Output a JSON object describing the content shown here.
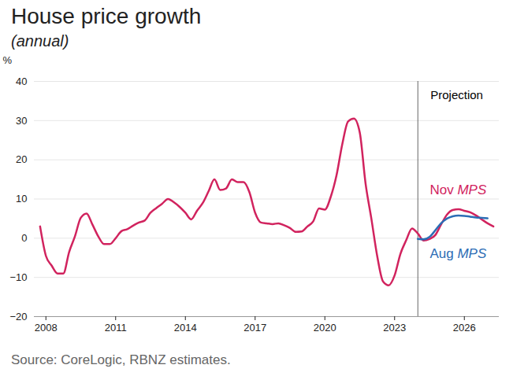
{
  "chart_data": {
    "type": "line",
    "title": "House price growth",
    "subtitle": "(annual)",
    "caption": "Source: CoreLogic, RBNZ estimates.",
    "y_label": "%",
    "projection": {
      "label": "Projection",
      "x": 2024.0
    },
    "x": [
      2007.75,
      2008.0,
      2008.25,
      2008.5,
      2008.75,
      2009.0,
      2009.25,
      2009.5,
      2009.75,
      2010.0,
      2010.25,
      2010.5,
      2010.75,
      2011.0,
      2011.25,
      2011.5,
      2011.75,
      2012.0,
      2012.25,
      2012.5,
      2012.75,
      2013.0,
      2013.25,
      2013.5,
      2013.75,
      2014.0,
      2014.25,
      2014.5,
      2014.75,
      2015.0,
      2015.25,
      2015.5,
      2015.75,
      2016.0,
      2016.25,
      2016.5,
      2016.75,
      2017.0,
      2017.25,
      2017.5,
      2017.75,
      2018.0,
      2018.25,
      2018.5,
      2018.75,
      2019.0,
      2019.25,
      2019.5,
      2019.75,
      2020.0,
      2020.25,
      2020.5,
      2020.75,
      2021.0,
      2021.25,
      2021.5,
      2021.75,
      2022.0,
      2022.25,
      2022.5,
      2022.75,
      2023.0,
      2023.25,
      2023.5,
      2023.75,
      2024.0,
      2024.25,
      2024.5,
      2024.75,
      2025.0,
      2025.25,
      2025.5,
      2025.75,
      2026.0,
      2026.25,
      2026.5,
      2026.75,
      2027.0,
      2027.25
    ],
    "series": [
      {
        "name": "Nov MPS",
        "color": "#d1235e",
        "values": [
          3.0,
          -4.5,
          -7.0,
          -9.0,
          -9.0,
          -3.5,
          0.5,
          5.2,
          6.3,
          3.5,
          0.5,
          -1.5,
          -1.5,
          0.0,
          1.8,
          2.3,
          3.2,
          4.0,
          4.5,
          6.5,
          7.7,
          8.8,
          10.0,
          9.2,
          8.0,
          6.5,
          4.8,
          7.0,
          9.0,
          12.0,
          15.0,
          12.3,
          12.7,
          15.0,
          14.3,
          14.3,
          11.8,
          6.5,
          4.0,
          3.8,
          3.6,
          3.8,
          3.3,
          2.6,
          1.6,
          1.7,
          3.0,
          4.3,
          7.6,
          7.3,
          10.5,
          16.0,
          24.0,
          29.8,
          30.5,
          27.0,
          14.0,
          5.0,
          -4.5,
          -11.0,
          -12.0,
          -9.5,
          -4.0,
          -0.5,
          2.5,
          1.2,
          -0.6,
          -0.2,
          0.8,
          3.5,
          6.0,
          7.2,
          7.4,
          7.0,
          6.6,
          5.8,
          4.8,
          3.8,
          3.0
        ]
      },
      {
        "name": "Aug MPS",
        "color": "#2c6db5",
        "values": [
          null,
          null,
          null,
          null,
          null,
          null,
          null,
          null,
          null,
          null,
          null,
          null,
          null,
          null,
          null,
          null,
          null,
          null,
          null,
          null,
          null,
          null,
          null,
          null,
          null,
          null,
          null,
          null,
          null,
          null,
          null,
          null,
          null,
          null,
          null,
          null,
          null,
          null,
          null,
          null,
          null,
          null,
          null,
          null,
          null,
          null,
          null,
          null,
          null,
          null,
          null,
          null,
          null,
          null,
          null,
          null,
          null,
          null,
          null,
          null,
          null,
          null,
          null,
          null,
          null,
          -0.2,
          -0.3,
          0.3,
          2.0,
          3.8,
          5.0,
          5.6,
          5.8,
          5.7,
          5.5,
          5.3,
          5.2,
          5.1,
          null
        ]
      }
    ],
    "xlim": [
      2007.5,
      2027.5
    ],
    "ylim": [
      -20,
      40
    ],
    "xticks": [
      2008,
      2011,
      2014,
      2017,
      2020,
      2023,
      2026
    ],
    "yticks": [
      -20,
      -10,
      0,
      10,
      20,
      30,
      40
    ],
    "grid": true
  }
}
